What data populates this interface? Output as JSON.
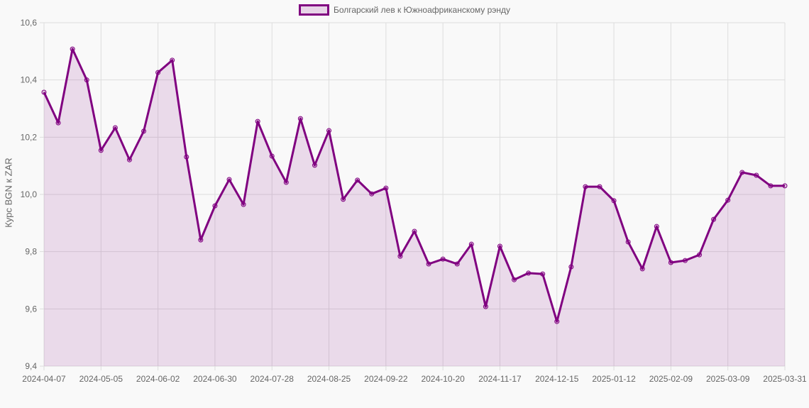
{
  "chart_data": {
    "type": "line",
    "title": "",
    "legend": {
      "position": "top",
      "entries": [
        "Болгарский лев к Южноафриканскому рэнду"
      ]
    },
    "xlabel": "",
    "ylabel": "Курс BGN к ZAR",
    "ylim": [
      9.4,
      10.6
    ],
    "yticks": [
      "9,4",
      "9,6",
      "9,8",
      "10,0",
      "10,2",
      "10,4",
      "10,6"
    ],
    "ytick_values": [
      9.4,
      9.6,
      9.8,
      10.0,
      10.2,
      10.4,
      10.6
    ],
    "xtick_labels": [
      "2024-04-07",
      "2024-05-05",
      "2024-06-02",
      "2024-06-30",
      "2024-07-28",
      "2024-08-25",
      "2024-09-22",
      "2024-10-20",
      "2024-11-17",
      "2024-12-15",
      "2025-01-12",
      "2025-02-09",
      "2025-03-09",
      "2025-03-31"
    ],
    "xtick_indices": [
      0,
      4,
      8,
      12,
      16,
      20,
      24,
      28,
      32,
      36,
      40,
      44,
      48,
      52
    ],
    "grid": true,
    "colors": {
      "line": "#800080",
      "fill": "rgba(128,0,128,0.12)",
      "grid": "#dddddd",
      "text": "#666666"
    },
    "series": [
      {
        "name": "Болгарский лев к Южноафриканскому рэнду",
        "values": [
          10.357,
          10.25,
          10.508,
          10.4,
          10.154,
          10.233,
          10.121,
          10.221,
          10.426,
          10.469,
          10.131,
          9.841,
          9.96,
          10.052,
          9.965,
          10.255,
          10.134,
          10.042,
          10.265,
          10.102,
          10.223,
          9.983,
          10.05,
          10.002,
          10.022,
          9.784,
          9.871,
          9.757,
          9.774,
          9.757,
          9.826,
          9.608,
          9.819,
          9.702,
          9.725,
          9.722,
          9.556,
          9.747,
          10.027,
          10.027,
          9.978,
          9.834,
          9.74,
          9.888,
          9.762,
          9.769,
          9.789,
          9.913,
          9.98,
          10.077,
          10.067,
          10.03,
          10.03
        ]
      }
    ]
  }
}
